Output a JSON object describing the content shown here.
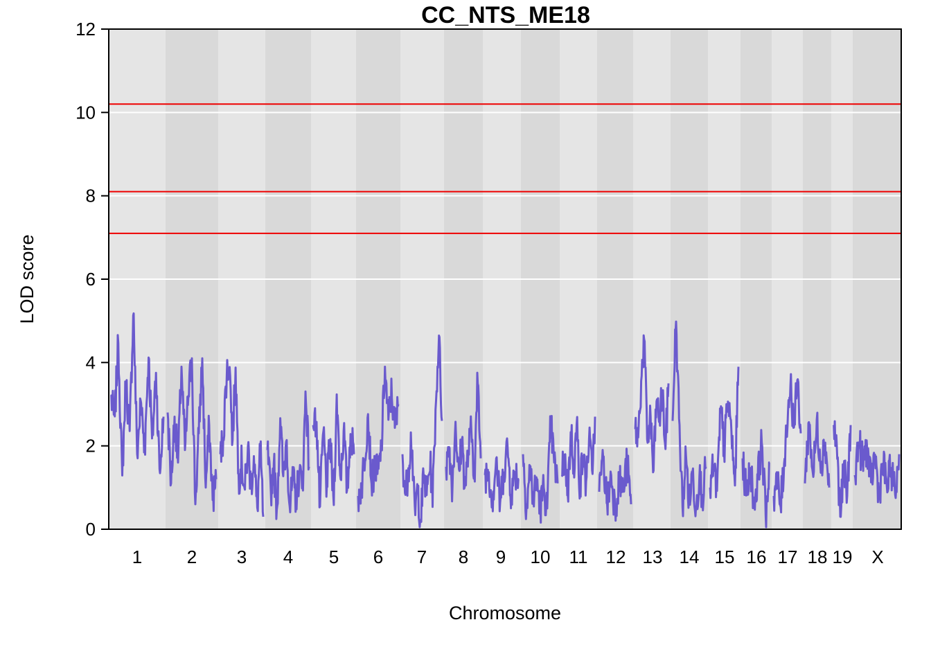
{
  "chart_data": {
    "type": "line",
    "title": "CC_NTS_ME18",
    "xlabel": "Chromosome",
    "ylabel": "LOD score",
    "ylim": [
      0,
      12
    ],
    "yticks": [
      "0",
      "2",
      "4",
      "6",
      "8",
      "10",
      "12"
    ],
    "grid": true,
    "legend": "none",
    "colors": {
      "line": "#6A5ACD",
      "threshold": "#EE0000",
      "band_light": "#E5E5E5",
      "band_dark": "#D9D9D9",
      "gridline": "#FFFFFF"
    },
    "thresholds": [
      10.2,
      8.1,
      7.1
    ],
    "chromosomes": [
      {
        "label": "1",
        "anchors": [
          3.2,
          2.6,
          4.5,
          1.2,
          3.6,
          2.3,
          5.3,
          1.8,
          3.1,
          1.9,
          4.2,
          2.1,
          3.8,
          1.3,
          2.7
        ]
      },
      {
        "label": "2",
        "anchors": [
          2.8,
          1.1,
          2.7,
          1.6,
          3.9,
          1.9,
          3.2,
          4.1,
          0.6,
          2.3,
          4.1,
          1.0,
          2.5,
          0.7,
          1.2
        ]
      },
      {
        "label": "3",
        "anchors": [
          1.8,
          2.2,
          3.7,
          4.0,
          2.1,
          3.9,
          1.2,
          1.6,
          0.9,
          2.0,
          1.0,
          1.8,
          0.4,
          2.0,
          0.3
        ]
      },
      {
        "label": "4",
        "anchors": [
          1.9,
          0.8,
          1.6,
          0.4,
          2.7,
          1.2,
          2.2,
          0.5,
          1.2,
          0.7,
          1.4,
          1.0,
          3.4,
          1.5
        ]
      },
      {
        "label": "5",
        "anchors": [
          2.5,
          2.6,
          0.5,
          2.4,
          1.0,
          2.1,
          0.7,
          3.1,
          1.2,
          2.4,
          0.9,
          2.3,
          1.8
        ]
      },
      {
        "label": "6",
        "anchors": [
          0.8,
          1.0,
          1.8,
          2.8,
          1.1,
          1.5,
          1.3,
          2.0,
          3.9,
          2.6,
          3.3,
          2.4,
          3.0
        ]
      },
      {
        "label": "7",
        "anchors": [
          1.8,
          0.8,
          1.5,
          2.3,
          0.3,
          1.0,
          0.2,
          1.3,
          0.8,
          1.6,
          0.9,
          3.0,
          4.7,
          2.6
        ]
      },
      {
        "label": "8",
        "anchors": [
          1.5,
          2.0,
          1.0,
          2.6,
          1.2,
          2.2,
          1.0,
          1.8,
          2.4,
          1.3,
          3.6,
          1.7
        ]
      },
      {
        "label": "9",
        "anchors": [
          1.3,
          1.4,
          0.7,
          1.7,
          0.6,
          1.4,
          2.0,
          0.8,
          1.4,
          1.2
        ]
      },
      {
        "label": "10",
        "anchors": [
          1.8,
          0.5,
          1.5,
          0.7,
          1.2,
          0.5,
          1.0,
          0.5,
          2.6,
          1.6,
          1.1
        ]
      },
      {
        "label": "11",
        "anchors": [
          1.3,
          1.8,
          0.8,
          2.4,
          1.5,
          2.5,
          1.0,
          1.8,
          1.1,
          2.2,
          1.4,
          2.7
        ]
      },
      {
        "label": "12",
        "anchors": [
          0.9,
          1.7,
          0.6,
          1.3,
          0.5,
          1.2,
          0.9,
          1.6,
          0.6
        ]
      },
      {
        "label": "13",
        "anchors": [
          2.4,
          2.2,
          3.6,
          4.6,
          2.0,
          2.8,
          1.3,
          3.1,
          2.6,
          3.3,
          1.9,
          3.5
        ]
      },
      {
        "label": "14",
        "anchors": [
          2.6,
          5.1,
          2.5,
          0.5,
          1.8,
          0.6,
          1.4,
          0.5,
          1.3,
          0.8,
          1.5
        ]
      },
      {
        "label": "15",
        "anchors": [
          1.0,
          1.5,
          0.9,
          2.9,
          1.9,
          3.1,
          2.4,
          1.0,
          3.9
        ]
      },
      {
        "label": "16",
        "anchors": [
          1.7,
          0.8,
          1.5,
          0.6,
          1.3,
          2.1,
          0.3,
          1.6
        ]
      },
      {
        "label": "17",
        "anchors": [
          0.8,
          1.2,
          0.5,
          1.5,
          2.7,
          3.5,
          2.4,
          3.6,
          2.3
        ]
      },
      {
        "label": "18",
        "anchors": [
          1.1,
          2.6,
          1.3,
          2.5,
          1.6,
          2.1,
          1.0
        ]
      },
      {
        "label": "19",
        "anchors": [
          2.5,
          2.0,
          0.3,
          1.5,
          0.8,
          2.5
        ]
      },
      {
        "label": "X",
        "anchors": [
          1.3,
          2.1,
          1.6,
          2.0,
          1.1,
          1.8,
          0.8,
          1.6,
          1.0,
          1.5,
          0.8,
          1.8
        ]
      }
    ]
  }
}
